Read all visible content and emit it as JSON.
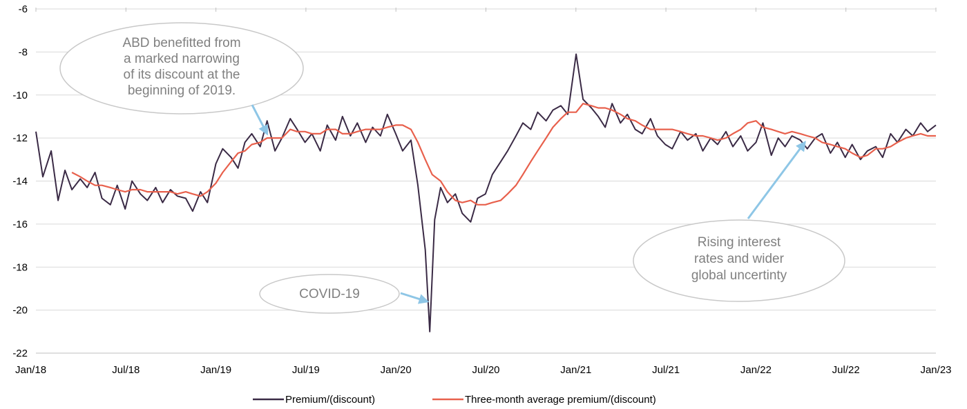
{
  "chart_data": {
    "type": "line",
    "title": "",
    "xlabel": "",
    "ylabel": "",
    "x_ticks": [
      "Jan/18",
      "Jul/18",
      "Jan/19",
      "Jul/19",
      "Jan/20",
      "Jul/20",
      "Jan/21",
      "Jul/21",
      "Jan/22",
      "Jul/22",
      "Jan/23"
    ],
    "y_ticks": [
      -6,
      -8,
      -10,
      -12,
      -14,
      -16,
      -18,
      -20,
      -22
    ],
    "ylim": [
      -22,
      -6
    ],
    "xlim": [
      "2018-01-01",
      "2023-01-01"
    ],
    "grid": "horizontal",
    "legend_position": "bottom",
    "colors": {
      "premium": "#3a2a45",
      "average": "#e8604c",
      "grid": "#d9d9d9",
      "arrow": "#8ec6e6",
      "callout": "#c8c8c8"
    },
    "series": [
      {
        "name": "Premium/(discount)",
        "x": [
          "2018-01-01",
          "2018-01-15",
          "2018-02-01",
          "2018-02-15",
          "2018-03-01",
          "2018-03-15",
          "2018-04-01",
          "2018-04-15",
          "2018-05-01",
          "2018-05-15",
          "2018-06-01",
          "2018-06-15",
          "2018-07-01",
          "2018-07-15",
          "2018-08-01",
          "2018-08-15",
          "2018-09-01",
          "2018-09-15",
          "2018-10-01",
          "2018-10-15",
          "2018-11-01",
          "2018-11-15",
          "2018-12-01",
          "2018-12-15",
          "2019-01-01",
          "2019-01-15",
          "2019-02-01",
          "2019-02-15",
          "2019-03-01",
          "2019-03-15",
          "2019-04-01",
          "2019-04-15",
          "2019-05-01",
          "2019-05-15",
          "2019-06-01",
          "2019-06-15",
          "2019-07-01",
          "2019-07-15",
          "2019-08-01",
          "2019-08-15",
          "2019-09-01",
          "2019-09-15",
          "2019-10-01",
          "2019-10-15",
          "2019-11-01",
          "2019-11-15",
          "2019-12-01",
          "2019-12-15",
          "2020-01-01",
          "2020-01-15",
          "2020-02-01",
          "2020-02-15",
          "2020-03-01",
          "2020-03-10",
          "2020-03-20",
          "2020-04-01",
          "2020-04-15",
          "2020-05-01",
          "2020-05-15",
          "2020-06-01",
          "2020-06-15",
          "2020-07-01",
          "2020-07-15",
          "2020-08-01",
          "2020-08-15",
          "2020-09-01",
          "2020-09-15",
          "2020-10-01",
          "2020-10-15",
          "2020-11-01",
          "2020-11-15",
          "2020-12-01",
          "2020-12-15",
          "2021-01-01",
          "2021-01-15",
          "2021-02-01",
          "2021-02-15",
          "2021-03-01",
          "2021-03-15",
          "2021-04-01",
          "2021-04-15",
          "2021-05-01",
          "2021-05-15",
          "2021-06-01",
          "2021-06-15",
          "2021-07-01",
          "2021-07-15",
          "2021-08-01",
          "2021-08-15",
          "2021-09-01",
          "2021-09-15",
          "2021-10-01",
          "2021-10-15",
          "2021-11-01",
          "2021-11-15",
          "2021-12-01",
          "2021-12-15",
          "2022-01-01",
          "2022-01-15",
          "2022-02-01",
          "2022-02-15",
          "2022-03-01",
          "2022-03-15",
          "2022-04-01",
          "2022-04-15",
          "2022-05-01",
          "2022-05-15",
          "2022-06-01",
          "2022-06-15",
          "2022-07-01",
          "2022-07-15",
          "2022-08-01",
          "2022-08-15",
          "2022-09-01",
          "2022-09-15",
          "2022-10-01",
          "2022-10-15",
          "2022-11-01",
          "2022-11-15",
          "2022-12-01",
          "2022-12-15",
          "2023-01-01"
        ],
        "values": [
          -11.7,
          -13.8,
          -12.6,
          -14.9,
          -13.5,
          -14.4,
          -13.9,
          -14.3,
          -13.6,
          -14.8,
          -15.1,
          -14.2,
          -15.3,
          -14.0,
          -14.6,
          -14.9,
          -14.3,
          -15.0,
          -14.4,
          -14.7,
          -14.8,
          -15.4,
          -14.5,
          -15.0,
          -13.2,
          -12.5,
          -12.9,
          -13.4,
          -12.2,
          -11.8,
          -12.4,
          -11.2,
          -12.6,
          -12.0,
          -11.1,
          -11.6,
          -12.2,
          -11.8,
          -12.6,
          -11.4,
          -12.1,
          -11.0,
          -11.9,
          -11.3,
          -12.2,
          -11.5,
          -11.9,
          -10.9,
          -11.8,
          -12.6,
          -12.1,
          -14.2,
          -17.2,
          -21.0,
          -15.8,
          -14.3,
          -15.0,
          -14.6,
          -15.5,
          -15.9,
          -14.8,
          -14.6,
          -13.7,
          -13.1,
          -12.6,
          -11.9,
          -11.3,
          -11.6,
          -10.8,
          -11.2,
          -10.7,
          -10.5,
          -10.9,
          -8.1,
          -10.2,
          -10.6,
          -11.0,
          -11.5,
          -10.4,
          -11.3,
          -10.9,
          -11.6,
          -11.8,
          -11.1,
          -11.9,
          -12.3,
          -12.5,
          -11.7,
          -12.1,
          -11.8,
          -12.6,
          -12.0,
          -12.3,
          -11.7,
          -12.4,
          -11.9,
          -12.6,
          -12.2,
          -11.3,
          -12.8,
          -12.0,
          -12.4,
          -11.9,
          -12.1,
          -12.5,
          -12.0,
          -11.8,
          -12.7,
          -12.2,
          -12.9,
          -12.3,
          -13.0,
          -12.6,
          -12.4,
          -12.9,
          -11.8,
          -12.2,
          -11.6,
          -11.9,
          -11.3,
          -11.7,
          -11.4
        ]
      },
      {
        "name": "Three-month average premium/(discount)",
        "x": [
          "2018-03-15",
          "2018-04-01",
          "2018-04-15",
          "2018-05-01",
          "2018-05-15",
          "2018-06-01",
          "2018-06-15",
          "2018-07-01",
          "2018-07-15",
          "2018-08-01",
          "2018-08-15",
          "2018-09-01",
          "2018-09-15",
          "2018-10-01",
          "2018-10-15",
          "2018-11-01",
          "2018-11-15",
          "2018-12-01",
          "2018-12-15",
          "2019-01-01",
          "2019-01-15",
          "2019-02-01",
          "2019-02-15",
          "2019-03-01",
          "2019-03-15",
          "2019-04-01",
          "2019-04-15",
          "2019-05-01",
          "2019-05-15",
          "2019-06-01",
          "2019-06-15",
          "2019-07-01",
          "2019-07-15",
          "2019-08-01",
          "2019-08-15",
          "2019-09-01",
          "2019-09-15",
          "2019-10-01",
          "2019-10-15",
          "2019-11-01",
          "2019-11-15",
          "2019-12-01",
          "2019-12-15",
          "2020-01-01",
          "2020-01-15",
          "2020-02-01",
          "2020-02-15",
          "2020-03-01",
          "2020-03-15",
          "2020-04-01",
          "2020-04-15",
          "2020-05-01",
          "2020-05-15",
          "2020-06-01",
          "2020-06-15",
          "2020-07-01",
          "2020-07-15",
          "2020-08-01",
          "2020-08-15",
          "2020-09-01",
          "2020-09-15",
          "2020-10-01",
          "2020-10-15",
          "2020-11-01",
          "2020-11-15",
          "2020-12-01",
          "2020-12-15",
          "2021-01-01",
          "2021-01-15",
          "2021-02-01",
          "2021-02-15",
          "2021-03-01",
          "2021-03-15",
          "2021-04-01",
          "2021-04-15",
          "2021-05-01",
          "2021-05-15",
          "2021-06-01",
          "2021-06-15",
          "2021-07-01",
          "2021-07-15",
          "2021-08-01",
          "2021-08-15",
          "2021-09-01",
          "2021-09-15",
          "2021-10-01",
          "2021-10-15",
          "2021-11-01",
          "2021-11-15",
          "2021-12-01",
          "2021-12-15",
          "2022-01-01",
          "2022-01-15",
          "2022-02-01",
          "2022-02-15",
          "2022-03-01",
          "2022-03-15",
          "2022-04-01",
          "2022-04-15",
          "2022-05-01",
          "2022-05-15",
          "2022-06-01",
          "2022-06-15",
          "2022-07-01",
          "2022-07-15",
          "2022-08-01",
          "2022-08-15",
          "2022-09-01",
          "2022-09-15",
          "2022-10-01",
          "2022-10-15",
          "2022-11-01",
          "2022-11-15",
          "2022-12-01",
          "2022-12-15",
          "2023-01-01"
        ],
        "values": [
          -13.6,
          -13.8,
          -14.0,
          -14.2,
          -14.2,
          -14.3,
          -14.4,
          -14.5,
          -14.4,
          -14.4,
          -14.5,
          -14.5,
          -14.5,
          -14.5,
          -14.6,
          -14.5,
          -14.6,
          -14.7,
          -14.5,
          -14.1,
          -13.6,
          -13.1,
          -12.7,
          -12.6,
          -12.3,
          -12.2,
          -12.0,
          -12.0,
          -12.0,
          -11.6,
          -11.7,
          -11.7,
          -11.8,
          -11.8,
          -11.6,
          -11.6,
          -11.8,
          -11.8,
          -11.7,
          -11.6,
          -11.6,
          -11.6,
          -11.5,
          -11.4,
          -11.4,
          -11.6,
          -12.2,
          -13.0,
          -13.7,
          -14.0,
          -14.5,
          -14.9,
          -15.0,
          -14.9,
          -15.1,
          -15.1,
          -15.0,
          -14.9,
          -14.6,
          -14.2,
          -13.7,
          -13.1,
          -12.6,
          -12.0,
          -11.5,
          -11.1,
          -10.8,
          -10.8,
          -10.4,
          -10.5,
          -10.6,
          -10.6,
          -10.7,
          -10.9,
          -11.1,
          -11.2,
          -11.4,
          -11.6,
          -11.6,
          -11.6,
          -11.6,
          -11.7,
          -11.8,
          -11.9,
          -11.9,
          -12.0,
          -12.1,
          -12.0,
          -11.8,
          -11.6,
          -11.3,
          -11.2,
          -11.5,
          -11.6,
          -11.7,
          -11.8,
          -11.7,
          -11.8,
          -11.9,
          -12.0,
          -12.2,
          -12.3,
          -12.4,
          -12.5,
          -12.7,
          -12.9,
          -12.8,
          -12.5,
          -12.5,
          -12.4,
          -12.2,
          -12.0,
          -11.9,
          -11.8,
          -11.9,
          -11.9
        ]
      }
    ],
    "annotations": [
      {
        "name": "abd-callout",
        "lines": [
          "ABD benefitted from",
          "a marked narrowing",
          "of its discount at the",
          "beginning of 2019."
        ],
        "target_date": "2019-04-15",
        "target_value": -11.8
      },
      {
        "name": "covid-callout",
        "lines": [
          "COVID-19"
        ],
        "target_date": "2020-03-05",
        "target_value": -19.6
      },
      {
        "name": "rates-callout",
        "lines": [
          "Rising interest",
          "rates and wider",
          "global uncertinty"
        ],
        "target_date": "2022-04-10",
        "target_value": -12.2
      }
    ]
  }
}
